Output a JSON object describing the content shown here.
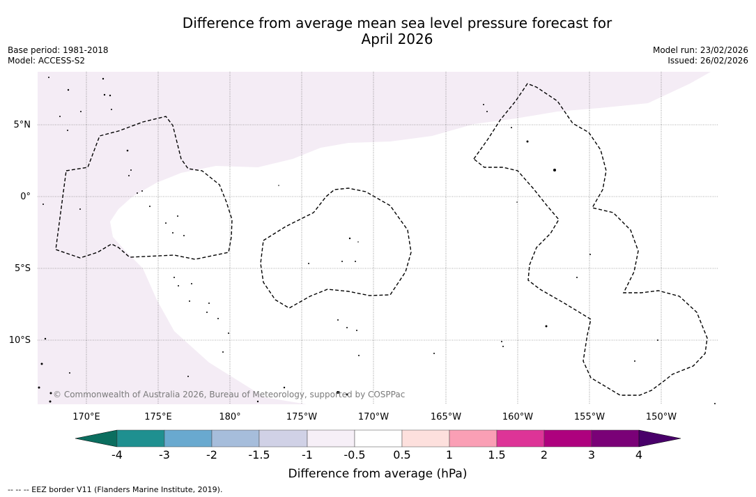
{
  "title_line1": "Difference from average mean sea level pressure forecast for",
  "title_line2": "April 2026",
  "base_period": "Base period: 1981-2018",
  "model": "Model: ACCESS-S2",
  "model_run": "Model run: 23/02/2026",
  "issued": "Issued: 26/02/2026",
  "map": {
    "lon_labels": [
      "170°E",
      "175°E",
      "180°",
      "175°W",
      "170°W",
      "165°W",
      "160°W",
      "155°W",
      "150°W"
    ],
    "lat_labels": [
      "5°N",
      "0°",
      "5°S",
      "10°S"
    ],
    "copyright": "© Commonwealth of Australia 2026, Bureau of Meteorology, supported by COSPPac",
    "shade_color": "#f4ecf5"
  },
  "colorbar": {
    "ticks": [
      "-4",
      "-3",
      "-2",
      "-1.5",
      "-1",
      "-0.5",
      "0.5",
      "1",
      "1.5",
      "2",
      "3",
      "4"
    ],
    "colors": [
      "#0b6e5f",
      "#1f9090",
      "#69a9cf",
      "#a6bddb",
      "#d0d1e6",
      "#f6eff7",
      "#ffffff",
      "#fde0dd",
      "#fa9fb5",
      "#dd3497",
      "#ae017e",
      "#7a0177",
      "#49006a"
    ],
    "label": "Difference from average (hPa)"
  },
  "footnote": "--  --  -- EEZ border V11 (Flanders Marine Institute, 2019)."
}
